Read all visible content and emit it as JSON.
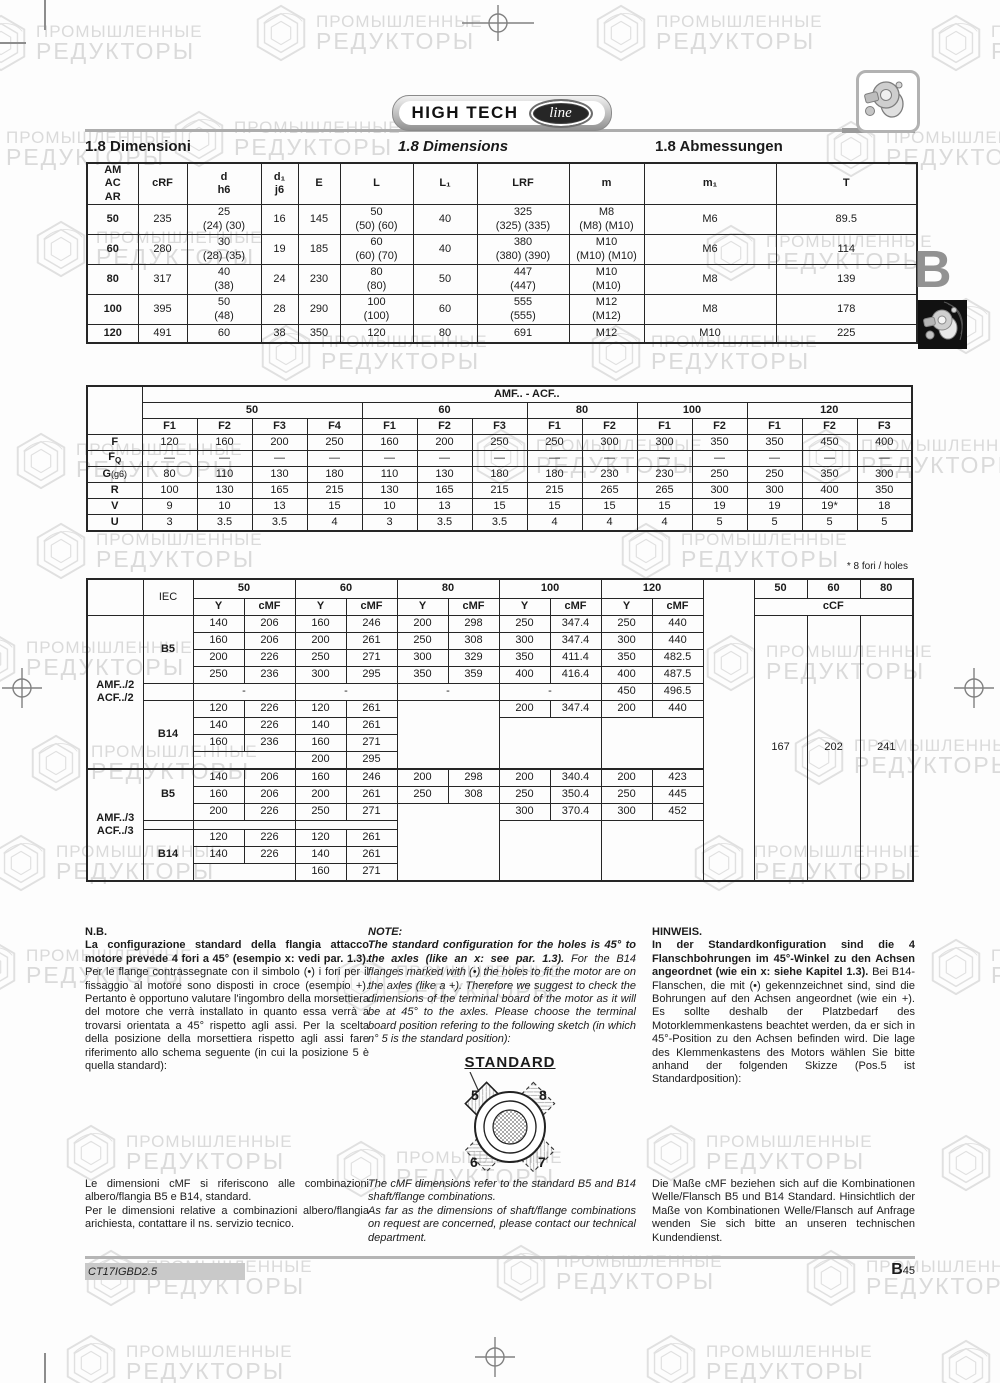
{
  "page": {
    "watermark": {
      "line1": "ПРОМЫШЛЕННЫЕ",
      "line2": "РЕДУКТОРЫ"
    },
    "logo_text": "HIGH TECH",
    "logo_script": "line",
    "headings": {
      "it": "1.8  Dimensioni",
      "en": "1.8  Dimensions",
      "de": "1.8  Abmessungen"
    },
    "side_tab_letter": "B",
    "footnote": "* 8 fori / holes",
    "footer": {
      "doc_code": "CT17IGBD2.5",
      "page_letter": "B",
      "page_number": "45"
    }
  },
  "dim_table": {
    "matrix": [
      [
        {
          "t": "AM\nAC\nAR",
          "k": "h"
        },
        {
          "t": "cRF",
          "k": "h"
        },
        {
          "t": "d\nh6",
          "k": "h"
        },
        {
          "t": "d₁\nj6",
          "k": "h"
        },
        {
          "t": "E",
          "k": "h"
        },
        {
          "t": "L",
          "k": "h"
        },
        {
          "t": "L₁",
          "k": "h"
        },
        {
          "t": "LRF",
          "k": "h"
        },
        {
          "t": "m",
          "k": "h"
        },
        {
          "t": "m₁",
          "k": "h"
        },
        {
          "t": "T",
          "k": "h"
        }
      ],
      [
        {
          "t": "50",
          "k": "lbl"
        },
        {
          "t": "235"
        },
        {
          "t": "25\n(24) (30)"
        },
        {
          "t": "16"
        },
        {
          "t": "145"
        },
        {
          "t": "50\n(50) (60)"
        },
        {
          "t": "40"
        },
        {
          "t": "325\n(325) (335)"
        },
        {
          "t": "M8\n(M8) (M10)"
        },
        {
          "t": "M6"
        },
        {
          "t": "89.5"
        }
      ],
      [
        {
          "t": "60",
          "k": "lbl"
        },
        {
          "t": "280"
        },
        {
          "t": "30\n(28) (35)"
        },
        {
          "t": "19"
        },
        {
          "t": "185"
        },
        {
          "t": "60\n(60) (70)"
        },
        {
          "t": "40"
        },
        {
          "t": "380\n(380) (390)"
        },
        {
          "t": "M10\n(M10) (M10)"
        },
        {
          "t": "M6"
        },
        {
          "t": "114"
        }
      ],
      [
        {
          "t": "80",
          "k": "lbl"
        },
        {
          "t": "317"
        },
        {
          "t": "40\n(38)"
        },
        {
          "t": "24"
        },
        {
          "t": "230"
        },
        {
          "t": "80\n(80)"
        },
        {
          "t": "50"
        },
        {
          "t": "447\n(447)"
        },
        {
          "t": "M10\n(M10)"
        },
        {
          "t": "M8"
        },
        {
          "t": "139"
        }
      ],
      [
        {
          "t": "100",
          "k": "lbl"
        },
        {
          "t": "395"
        },
        {
          "t": "50\n(48)"
        },
        {
          "t": "28"
        },
        {
          "t": "290"
        },
        {
          "t": "100\n(100)"
        },
        {
          "t": "60"
        },
        {
          "t": "555\n(555)"
        },
        {
          "t": "M12\n(M12)"
        },
        {
          "t": "M8"
        },
        {
          "t": "178"
        }
      ],
      [
        {
          "t": "120",
          "k": "lbl"
        },
        {
          "t": "491"
        },
        {
          "t": "60"
        },
        {
          "t": "38"
        },
        {
          "t": "350"
        },
        {
          "t": "120"
        },
        {
          "t": "80"
        },
        {
          "t": "691"
        },
        {
          "t": "M12"
        },
        {
          "t": "M10"
        },
        {
          "t": "225"
        }
      ]
    ]
  },
  "flange_table": {
    "matrix": [
      [
        {
          "t": "",
          "r": 3
        },
        {
          "t": "AMF.. - ACF..",
          "c": 14,
          "k": "title"
        }
      ],
      [
        {
          "t": "50",
          "c": 4,
          "k": "h"
        },
        {
          "t": "60",
          "c": 3,
          "k": "h"
        },
        {
          "t": "80",
          "c": 2,
          "k": "h"
        },
        {
          "t": "100",
          "c": 2,
          "k": "h"
        },
        {
          "t": "120",
          "c": 3,
          "k": "h"
        }
      ],
      [
        {
          "t": "F1",
          "k": "h"
        },
        {
          "t": "F2",
          "k": "h"
        },
        {
          "t": "F3",
          "k": "h"
        },
        {
          "t": "F4",
          "k": "h"
        },
        {
          "t": "F1",
          "k": "h"
        },
        {
          "t": "F2",
          "k": "h"
        },
        {
          "t": "F3",
          "k": "h"
        },
        {
          "t": "F1",
          "k": "h"
        },
        {
          "t": "F2",
          "k": "h"
        },
        {
          "t": "F1",
          "k": "h"
        },
        {
          "t": "F2",
          "k": "h"
        },
        {
          "t": "F1",
          "k": "h"
        },
        {
          "t": "F2",
          "k": "h"
        },
        {
          "t": "F3",
          "k": "h"
        }
      ],
      [
        {
          "t": "F",
          "k": "lbl"
        },
        {
          "t": "120"
        },
        {
          "t": "160"
        },
        {
          "t": "200"
        },
        {
          "t": "250"
        },
        {
          "t": "160"
        },
        {
          "t": "200"
        },
        {
          "t": "250"
        },
        {
          "t": "250"
        },
        {
          "t": "300"
        },
        {
          "t": "300"
        },
        {
          "t": "350"
        },
        {
          "t": "350"
        },
        {
          "t": "450"
        },
        {
          "t": "400"
        }
      ],
      [
        {
          "t": "F",
          "sub": "Q",
          "k": "lbl"
        },
        {
          "t": "—"
        },
        {
          "t": "—"
        },
        {
          "t": "—"
        },
        {
          "t": "—"
        },
        {
          "t": "—"
        },
        {
          "t": "—"
        },
        {
          "t": "—"
        },
        {
          "t": "—"
        },
        {
          "t": "—"
        },
        {
          "t": "—"
        },
        {
          "t": "—"
        },
        {
          "t": "—"
        },
        {
          "t": "—"
        },
        {
          "t": "—"
        }
      ],
      [
        {
          "t": "G",
          "sfx": "(g6)",
          "k": "lbl"
        },
        {
          "t": "80"
        },
        {
          "t": "110"
        },
        {
          "t": "130"
        },
        {
          "t": "180"
        },
        {
          "t": "110"
        },
        {
          "t": "130"
        },
        {
          "t": "180"
        },
        {
          "t": "180"
        },
        {
          "t": "230"
        },
        {
          "t": "230"
        },
        {
          "t": "250"
        },
        {
          "t": "250"
        },
        {
          "t": "350"
        },
        {
          "t": "300"
        }
      ],
      [
        {
          "t": "R",
          "k": "lbl"
        },
        {
          "t": "100"
        },
        {
          "t": "130"
        },
        {
          "t": "165"
        },
        {
          "t": "215"
        },
        {
          "t": "130"
        },
        {
          "t": "165"
        },
        {
          "t": "215"
        },
        {
          "t": "215"
        },
        {
          "t": "265"
        },
        {
          "t": "265"
        },
        {
          "t": "300"
        },
        {
          "t": "300"
        },
        {
          "t": "400"
        },
        {
          "t": "350"
        }
      ],
      [
        {
          "t": "V",
          "k": "lbl"
        },
        {
          "t": "9"
        },
        {
          "t": "10"
        },
        {
          "t": "13"
        },
        {
          "t": "15"
        },
        {
          "t": "10"
        },
        {
          "t": "13"
        },
        {
          "t": "15"
        },
        {
          "t": "15"
        },
        {
          "t": "15"
        },
        {
          "t": "15"
        },
        {
          "t": "19"
        },
        {
          "t": "19"
        },
        {
          "t": "19*"
        },
        {
          "t": "18"
        }
      ],
      [
        {
          "t": "U",
          "k": "lbl"
        },
        {
          "t": "3"
        },
        {
          "t": "3.5"
        },
        {
          "t": "3.5"
        },
        {
          "t": "4"
        },
        {
          "t": "3"
        },
        {
          "t": "3.5"
        },
        {
          "t": "3.5"
        },
        {
          "t": "4"
        },
        {
          "t": "4"
        },
        {
          "t": "4"
        },
        {
          "t": "5"
        },
        {
          "t": "5"
        },
        {
          "t": "5"
        },
        {
          "t": "5"
        }
      ]
    ]
  },
  "cmf_table": {
    "matrix": [
      [
        {
          "t": "",
          "r": 2
        },
        {
          "t": "IEC",
          "r": 2
        },
        {
          "t": "50",
          "c": 2,
          "k": "h"
        },
        {
          "t": "60",
          "c": 2,
          "k": "h"
        },
        {
          "t": "80",
          "c": 2,
          "k": "h"
        },
        {
          "t": "100",
          "c": 2,
          "k": "h"
        },
        {
          "t": "120",
          "c": 2,
          "k": "h"
        },
        {
          "t": "",
          "r": 18,
          "k": "spacer"
        },
        {
          "t": "50",
          "k": "h"
        },
        {
          "t": "60",
          "k": "h"
        },
        {
          "t": "80",
          "k": "h"
        }
      ],
      [
        {
          "t": "Y",
          "k": "h"
        },
        {
          "t": "cMF",
          "k": "h"
        },
        {
          "t": "Y",
          "k": "h"
        },
        {
          "t": "cMF",
          "k": "h"
        },
        {
          "t": "Y",
          "k": "h"
        },
        {
          "t": "cMF",
          "k": "h"
        },
        {
          "t": "Y",
          "k": "h"
        },
        {
          "t": "cMF",
          "k": "h"
        },
        {
          "t": "Y",
          "k": "h"
        },
        {
          "t": "cMF",
          "k": "h"
        },
        {
          "t": "cCF",
          "c": 3,
          "k": "h"
        }
      ],
      [
        {
          "t": "AMF../2\nACF../2",
          "r": 9,
          "k": "grp"
        },
        {
          "t": "B5",
          "r": 4,
          "k": "iec"
        },
        {
          "t": "140"
        },
        {
          "t": "206"
        },
        {
          "t": "160"
        },
        {
          "t": "246"
        },
        {
          "t": "200"
        },
        {
          "t": "298"
        },
        {
          "t": "250"
        },
        {
          "t": "347.4"
        },
        {
          "t": "250"
        },
        {
          "t": "440"
        },
        {
          "t": "167",
          "r": 16,
          "k": "ccf"
        },
        {
          "t": "202",
          "r": 16,
          "k": "ccf"
        },
        {
          "t": "241",
          "r": 16,
          "k": "ccf"
        }
      ],
      [
        {
          "t": "160"
        },
        {
          "t": "206"
        },
        {
          "t": "200"
        },
        {
          "t": "261"
        },
        {
          "t": "250"
        },
        {
          "t": "308"
        },
        {
          "t": "300"
        },
        {
          "t": "347.4"
        },
        {
          "t": "300"
        },
        {
          "t": "440"
        }
      ],
      [
        {
          "t": "200"
        },
        {
          "t": "226"
        },
        {
          "t": "250"
        },
        {
          "t": "271"
        },
        {
          "t": "300"
        },
        {
          "t": "329"
        },
        {
          "t": "350"
        },
        {
          "t": "411.4"
        },
        {
          "t": "350"
        },
        {
          "t": "482.5"
        }
      ],
      [
        {
          "t": "250"
        },
        {
          "t": "236"
        },
        {
          "t": "300"
        },
        {
          "t": "295"
        },
        {
          "t": "350"
        },
        {
          "t": "359"
        },
        {
          "t": "400"
        },
        {
          "t": "416.4"
        },
        {
          "t": "400"
        },
        {
          "t": "487.5"
        }
      ],
      [
        {
          "t": ""
        },
        {
          "t": "-",
          "c": 2
        },
        {
          "t": "-",
          "c": 2
        },
        {
          "t": "-",
          "c": 2
        },
        {
          "t": "-",
          "c": 2
        },
        {
          "t": "450"
        },
        {
          "t": "496.5"
        }
      ],
      [
        {
          "t": "B14",
          "r": 4,
          "k": "iec"
        },
        {
          "t": "120"
        },
        {
          "t": "226"
        },
        {
          "t": "120"
        },
        {
          "t": "261"
        },
        {
          "t": "",
          "c": 2,
          "r": 4
        },
        {
          "t": "200"
        },
        {
          "t": "347.4"
        },
        {
          "t": "200"
        },
        {
          "t": "440"
        }
      ],
      [
        {
          "t": "140"
        },
        {
          "t": "226"
        },
        {
          "t": "140"
        },
        {
          "t": "261"
        },
        {
          "t": "",
          "c": 2,
          "r": 3
        },
        {
          "t": "",
          "c": 2,
          "r": 3
        }
      ],
      [
        {
          "t": "160"
        },
        {
          "t": "236"
        },
        {
          "t": "160"
        },
        {
          "t": "271"
        }
      ],
      [
        {
          "t": "",
          "c": 2
        },
        {
          "t": "200"
        },
        {
          "t": "295"
        }
      ],
      [
        {
          "t": "AMF../3\nACF../3",
          "r": 7,
          "k": "grp sect"
        },
        {
          "t": "B5",
          "r": 3,
          "k": "iec sect"
        },
        {
          "t": "140",
          "k": "sect"
        },
        {
          "t": "206",
          "k": "sect"
        },
        {
          "t": "160",
          "k": "sect"
        },
        {
          "t": "246",
          "k": "sect"
        },
        {
          "t": "200",
          "k": "sect"
        },
        {
          "t": "298",
          "k": "sect"
        },
        {
          "t": "200",
          "k": "sect"
        },
        {
          "t": "340.4",
          "k": "sect"
        },
        {
          "t": "200",
          "k": "sect"
        },
        {
          "t": "423",
          "k": "sect"
        }
      ],
      [
        {
          "t": "160"
        },
        {
          "t": "206"
        },
        {
          "t": "200"
        },
        {
          "t": "261"
        },
        {
          "t": "250"
        },
        {
          "t": "308"
        },
        {
          "t": "250"
        },
        {
          "t": "350.4"
        },
        {
          "t": "250"
        },
        {
          "t": "445"
        }
      ],
      [
        {
          "t": "200"
        },
        {
          "t": "226"
        },
        {
          "t": "250"
        },
        {
          "t": "271"
        },
        {
          "t": "",
          "c": 2,
          "r": 5
        },
        {
          "t": "300"
        },
        {
          "t": "370.4"
        },
        {
          "t": "300"
        },
        {
          "t": "452"
        }
      ],
      [
        {
          "t": "",
          "k": "thin"
        },
        {
          "t": "",
          "c": 2,
          "k": "thin"
        },
        {
          "t": "",
          "c": 2,
          "k": "thin"
        },
        {
          "t": "",
          "c": 2,
          "r": 4
        },
        {
          "t": "",
          "c": 2,
          "r": 4
        }
      ],
      [
        {
          "t": "B14",
          "r": 3,
          "k": "iec"
        },
        {
          "t": "120"
        },
        {
          "t": "226"
        },
        {
          "t": "120"
        },
        {
          "t": "261"
        }
      ],
      [
        {
          "t": "140"
        },
        {
          "t": "226"
        },
        {
          "t": "140"
        },
        {
          "t": "261"
        }
      ],
      [
        {
          "t": "",
          "c": 2
        },
        {
          "t": "160"
        },
        {
          "t": "271"
        }
      ]
    ]
  },
  "notes": {
    "it": {
      "title": "N.B.",
      "lead": "La configurazione standard della flangia attacco motore prevede 4 fori a 45° (esempio x: vedi par. 1.3).",
      "body": "Per le flange contrassegnate con il simbolo (•) i fori per il fissaggio al motore sono disposti in croce (esempio +). Pertanto è opportuno valutare l'ingombro della morsettiera del motore che verrà installato in quanto essa verrà a trovarsi orientata a 45° rispetto agli assi. Per la scelta della posizione della morsettiera rispetto agli assi fare riferimento allo schema seguente (in cui la posizione 5 è quella standard):"
    },
    "en": {
      "title": "NOTE:",
      "lead": "The standard configuration for the holes is 45° to the axles (like an x: see par. 1.3).",
      "body": "For the B14 flanges marked with (•) the holes to fit the motor are on the axles (like a +). Therefore we suggest to check the dimensions of the terminal board of the motor as it will be at 45° to the axles. Please choose the terminal board position refering to the following sketch (in which n° 5 is the standard position):"
    },
    "de": {
      "title": "HINWEIS.",
      "lead": "In der Standardkonfiguration sind die 4 Flanschbohrungen im 45°-Winkel zu den Achsen angeordnet (wie ein x: siehe Kapitel 1.3).",
      "body": "Bei B14-Flanschen, die mit (•) gekennzeichnet sind, sind die Bohrungen auf den Achsen angeordnet (wie ein +). Es sollte deshalb der Platzbedarf des Motorklemmenkastens beachtet werden, da er sich in 45°-Position zu den Achsen befinden wird. Die lage des Klemmenkastens des Motors wählen Sie bitte anhand der folgenden Skizze (Pos.5 ist Standardposition):"
    }
  },
  "diagram": {
    "title": "STANDARD",
    "positions": {
      "p5": "5",
      "p8": "8",
      "p6": "6",
      "p7": "7"
    }
  },
  "bottom_notes": {
    "it": {
      "p1": "Le dimensioni cMF si riferiscono alle combinazioni albero/flangia B5 e B14, standard.",
      "p2": "Per le dimensioni relative a combinazioni albero/flangia arichiesta, contattare il ns. servizio tecnico."
    },
    "en": {
      "p1": "The cMF dimensions refer to the standard B5 and B14 shaft/flange combinations.",
      "p2": "As far as the dimensions of shaft/flange combinations on request are concerned, please contact our technical department."
    },
    "de": {
      "p1": "Die Maße cMF beziehen sich auf die Kombinationen Welle/Flansch B5 und B14 Standard. Hinsichtlich der Maße von Kombinationen Welle/Flansch auf Anfrage wenden Sie sich bitte an unseren technischen Kundendienst.",
      "p2": ""
    }
  }
}
